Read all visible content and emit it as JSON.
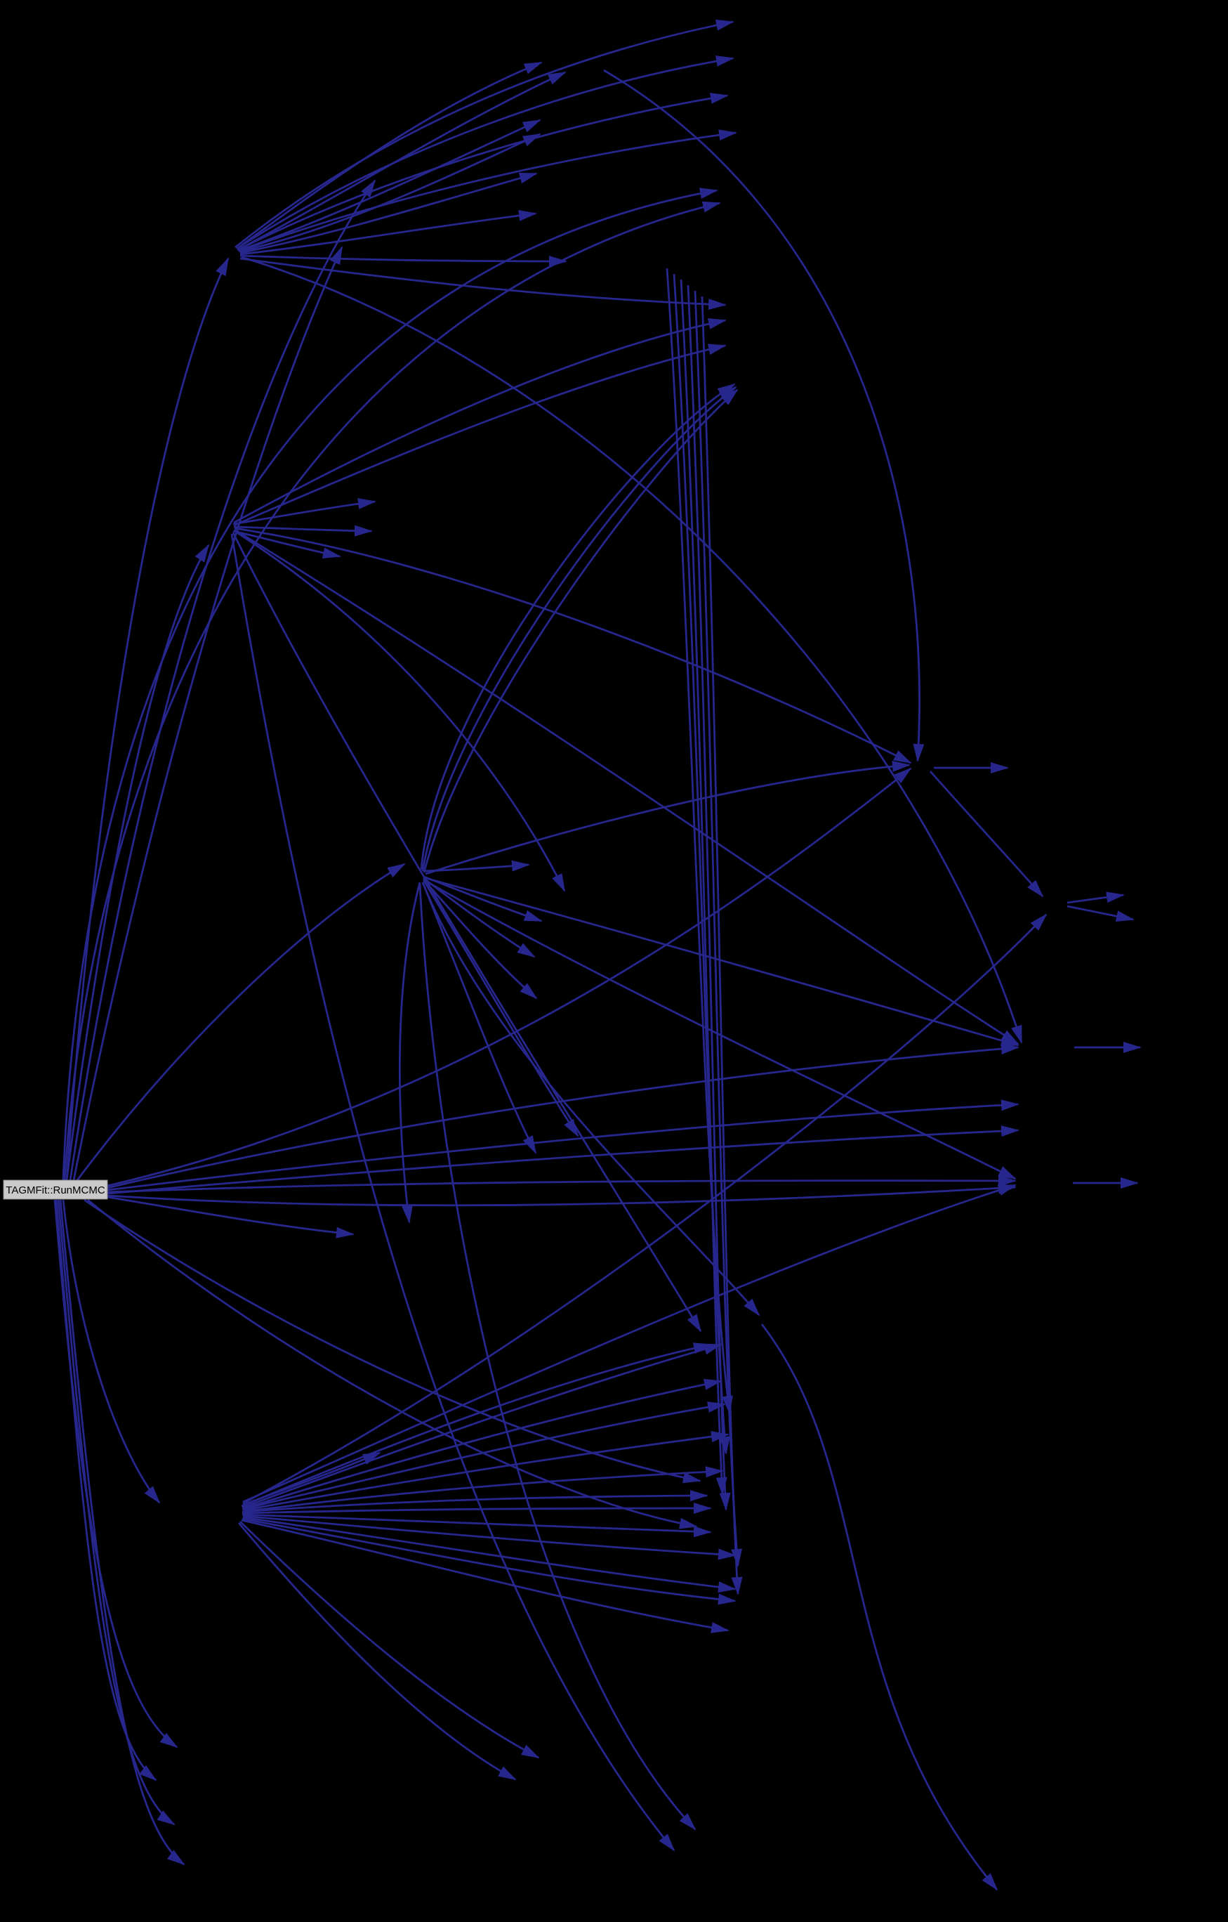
{
  "diagram": {
    "type": "call-graph",
    "background_color": "#000000",
    "edge_color": "#26268c",
    "root_node": {
      "label": "TAGMFit::RunMCMC",
      "fill": "#c9c9c9",
      "border_color": "#8a8a8a",
      "text_color": "#000000"
    },
    "edges": [
      [
        95,
        1680,
        140,
        1050,
        230,
        560,
        325,
        368
      ],
      [
        95,
        1680,
        150,
        1250,
        220,
        900,
        297,
        776
      ],
      [
        110,
        1680,
        260,
        1480,
        440,
        1310,
        576,
        1230
      ],
      [
        90,
        1708,
        110,
        1900,
        170,
        2070,
        227,
        2139
      ],
      [
        153,
        1688,
        700,
        1560,
        1100,
        1250,
        1297,
        1094
      ],
      [
        153,
        1691,
        600,
        1585,
        1100,
        1520,
        1450,
        1491
      ],
      [
        153,
        1697,
        600,
        1680,
        1100,
        1680,
        1446,
        1681
      ],
      [
        153,
        1702,
        600,
        1730,
        1100,
        1710,
        1446,
        1690
      ],
      [
        153,
        1694,
        600,
        1640,
        1100,
        1590,
        1450,
        1572
      ],
      [
        153,
        1699,
        600,
        1660,
        1100,
        1625,
        1450,
        1609
      ],
      [
        153,
        1704,
        280,
        1725,
        400,
        1747,
        503,
        1757
      ],
      [
        100,
        1680,
        180,
        1150,
        330,
        560,
        534,
        257
      ],
      [
        105,
        1680,
        200,
        1200,
        350,
        650,
        487,
        352
      ],
      [
        90,
        1680,
        120,
        900,
        420,
        380,
        1021,
        271
      ],
      [
        92,
        1680,
        140,
        950,
        480,
        420,
        1025,
        289
      ],
      [
        78,
        1708,
        115,
        2150,
        155,
        2420,
        252,
        2487
      ],
      [
        80,
        1708,
        120,
        2180,
        140,
        2470,
        222,
        2534
      ],
      [
        83,
        1708,
        130,
        2230,
        160,
        2540,
        248,
        2597
      ],
      [
        86,
        1708,
        140,
        2280,
        175,
        2590,
        262,
        2654
      ],
      [
        120,
        1708,
        400,
        1900,
        750,
        2060,
        997,
        2108
      ],
      [
        125,
        1708,
        420,
        1950,
        760,
        2130,
        992,
        2173
      ],
      [
        335,
        352,
        550,
        180,
        800,
        80,
        1044,
        31
      ],
      [
        337,
        354,
        560,
        210,
        820,
        120,
        1044,
        83
      ],
      [
        338,
        356,
        570,
        240,
        830,
        170,
        1036,
        136
      ],
      [
        340,
        358,
        580,
        270,
        850,
        215,
        1048,
        189
      ],
      [
        340,
        352,
        480,
        250,
        620,
        150,
        771,
        89
      ],
      [
        342,
        354,
        500,
        270,
        650,
        175,
        805,
        103
      ],
      [
        342,
        356,
        500,
        300,
        640,
        230,
        769,
        171
      ],
      [
        342,
        358,
        500,
        320,
        640,
        250,
        769,
        191
      ],
      [
        342,
        360,
        490,
        330,
        630,
        285,
        764,
        247
      ],
      [
        342,
        362,
        490,
        345,
        630,
        320,
        763,
        304
      ],
      [
        342,
        364,
        500,
        370,
        660,
        372,
        806,
        372
      ],
      [
        344,
        366,
        850,
        520,
        1300,
        1000,
        1455,
        1484
      ],
      [
        342,
        368,
        580,
        400,
        800,
        425,
        1033,
        434
      ],
      [
        332,
        746,
        400,
        735,
        470,
        722,
        534,
        714
      ],
      [
        333,
        750,
        400,
        752,
        465,
        755,
        529,
        756
      ],
      [
        332,
        756,
        385,
        768,
        435,
        782,
        484,
        792
      ],
      [
        333,
        744,
        560,
        620,
        820,
        500,
        1033,
        456
      ],
      [
        333,
        748,
        560,
        650,
        820,
        540,
        1033,
        492
      ],
      [
        334,
        752,
        650,
        800,
        1050,
        960,
        1297,
        1086
      ],
      [
        334,
        756,
        560,
        900,
        720,
        1100,
        804,
        1268
      ],
      [
        330,
        760,
        420,
        1300,
        600,
        2200,
        960,
        2634
      ],
      [
        332,
        758,
        500,
        1100,
        820,
        1600,
        998,
        1895
      ],
      [
        334,
        754,
        800,
        1040,
        1250,
        1360,
        1450,
        1486
      ],
      [
        604,
        1240,
        660,
        1238,
        710,
        1234,
        753,
        1231
      ],
      [
        604,
        1248,
        660,
        1270,
        715,
        1292,
        771,
        1311
      ],
      [
        603,
        1250,
        655,
        1290,
        710,
        1330,
        761,
        1362
      ],
      [
        603,
        1252,
        655,
        1310,
        710,
        1375,
        764,
        1421
      ],
      [
        604,
        1254,
        680,
        1380,
        760,
        1520,
        823,
        1617
      ],
      [
        602,
        1256,
        660,
        1400,
        720,
        1560,
        763,
        1641
      ],
      [
        600,
        1238,
        620,
        1000,
        900,
        640,
        1046,
        547
      ],
      [
        602,
        1240,
        640,
        1010,
        910,
        655,
        1048,
        551
      ],
      [
        604,
        1242,
        660,
        1020,
        920,
        670,
        1050,
        555
      ],
      [
        606,
        1250,
        900,
        1330,
        1250,
        1430,
        1450,
        1488
      ],
      [
        606,
        1254,
        900,
        1420,
        1250,
        1580,
        1446,
        1678
      ],
      [
        598,
        1256,
        560,
        1400,
        565,
        1600,
        583,
        1740
      ],
      [
        606,
        1244,
        900,
        1150,
        1150,
        1100,
        1295,
        1089
      ],
      [
        602,
        1256,
        700,
        1500,
        950,
        1720,
        1081,
        1872
      ],
      [
        598,
        1258,
        620,
        1700,
        750,
        2350,
        990,
        2604
      ],
      [
        344,
        2144,
        570,
        2050,
        800,
        1960,
        1012,
        1914
      ],
      [
        345,
        2146,
        580,
        2060,
        810,
        1975,
        1027,
        1914
      ],
      [
        345,
        2148,
        580,
        2075,
        810,
        2010,
        1027,
        1966
      ],
      [
        346,
        2148,
        590,
        2090,
        820,
        2035,
        1032,
        1999
      ],
      [
        346,
        2150,
        590,
        2105,
        820,
        2070,
        1037,
        2042
      ],
      [
        346,
        2152,
        590,
        2120,
        820,
        2105,
        1029,
        2094
      ],
      [
        345,
        2152,
        580,
        2135,
        800,
        2130,
        1007,
        2129
      ],
      [
        345,
        2154,
        580,
        2148,
        800,
        2147,
        1012,
        2147
      ],
      [
        345,
        2156,
        580,
        2165,
        800,
        2175,
        1012,
        2181
      ],
      [
        346,
        2158,
        590,
        2180,
        820,
        2200,
        1047,
        2214
      ],
      [
        346,
        2160,
        590,
        2195,
        820,
        2235,
        1047,
        2262
      ],
      [
        345,
        2162,
        580,
        2205,
        810,
        2255,
        1047,
        2279
      ],
      [
        344,
        2164,
        570,
        2215,
        800,
        2280,
        1037,
        2321
      ],
      [
        342,
        2166,
        480,
        2300,
        630,
        2430,
        767,
        2502
      ],
      [
        340,
        2168,
        460,
        2310,
        600,
        2460,
        734,
        2533
      ],
      [
        346,
        2142,
        420,
        2115,
        490,
        2090,
        541,
        2068
      ],
      [
        346,
        2140,
        800,
        1900,
        1300,
        1500,
        1490,
        1302
      ],
      [
        346,
        2138,
        750,
        1960,
        1150,
        1780,
        1446,
        1687
      ],
      [
        950,
        382,
        985,
        900,
        1000,
        1700,
        1039,
        2011
      ],
      [
        960,
        390,
        995,
        950,
        1008,
        1750,
        1034,
        2069
      ],
      [
        970,
        398,
        1002,
        1000,
        1012,
        1800,
        1029,
        2127
      ],
      [
        980,
        406,
        1010,
        1050,
        1018,
        1850,
        1034,
        2149
      ],
      [
        990,
        414,
        1018,
        1100,
        1025,
        1900,
        1051,
        2229
      ],
      [
        1000,
        422,
        1025,
        1150,
        1032,
        1950,
        1051,
        2269
      ],
      [
        860,
        100,
        1200,
        300,
        1330,
        700,
        1307,
        1083
      ],
      [
        1330,
        1093,
        1365,
        1093,
        1400,
        1093,
        1435,
        1093
      ],
      [
        1325,
        1098,
        1380,
        1160,
        1440,
        1225,
        1485,
        1276
      ],
      [
        1520,
        1285,
        1550,
        1281,
        1578,
        1277,
        1600,
        1274
      ],
      [
        1520,
        1290,
        1555,
        1297,
        1585,
        1303,
        1614,
        1309
      ],
      [
        1530,
        1491,
        1565,
        1491,
        1595,
        1491,
        1624,
        1491
      ],
      [
        1528,
        1684,
        1562,
        1684,
        1592,
        1684,
        1620,
        1684
      ],
      [
        1085,
        1885,
        1250,
        2100,
        1180,
        2400,
        1420,
        2690
      ]
    ]
  }
}
